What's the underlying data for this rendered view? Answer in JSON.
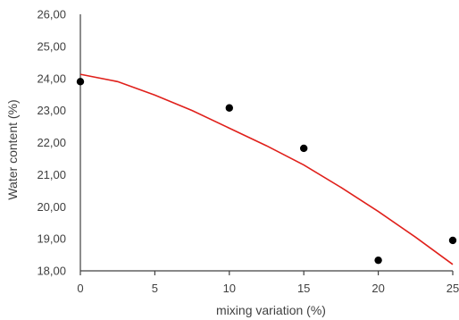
{
  "chart_data": {
    "type": "scatter",
    "title": "",
    "xlabel": "mixing variation (%)",
    "ylabel": "Water content (%)",
    "xlim": [
      0,
      25
    ],
    "ylim": [
      18,
      26
    ],
    "x_ticks": [
      "0",
      "5",
      "10",
      "15",
      "20",
      "25"
    ],
    "y_ticks": [
      "18,00",
      "19,00",
      "20,00",
      "21,00",
      "22,00",
      "23,00",
      "24,00",
      "25,00",
      "26,00"
    ],
    "grid": false,
    "legend": "none",
    "series": [
      {
        "type": "scatter",
        "x": [
          0,
          10,
          15,
          20,
          25
        ],
        "y": [
          23.9,
          23.08,
          21.82,
          18.33,
          18.95
        ],
        "color": "#000000"
      },
      {
        "type": "trendline",
        "fit": "polynomial",
        "x": [
          0,
          2.5,
          5,
          7.5,
          10,
          12.5,
          15,
          17.5,
          20,
          22.5,
          25
        ],
        "y": [
          24.13,
          23.9,
          23.48,
          23.0,
          22.45,
          21.9,
          21.3,
          20.6,
          19.85,
          19.05,
          18.2
        ],
        "color": "#e0201b"
      }
    ]
  }
}
